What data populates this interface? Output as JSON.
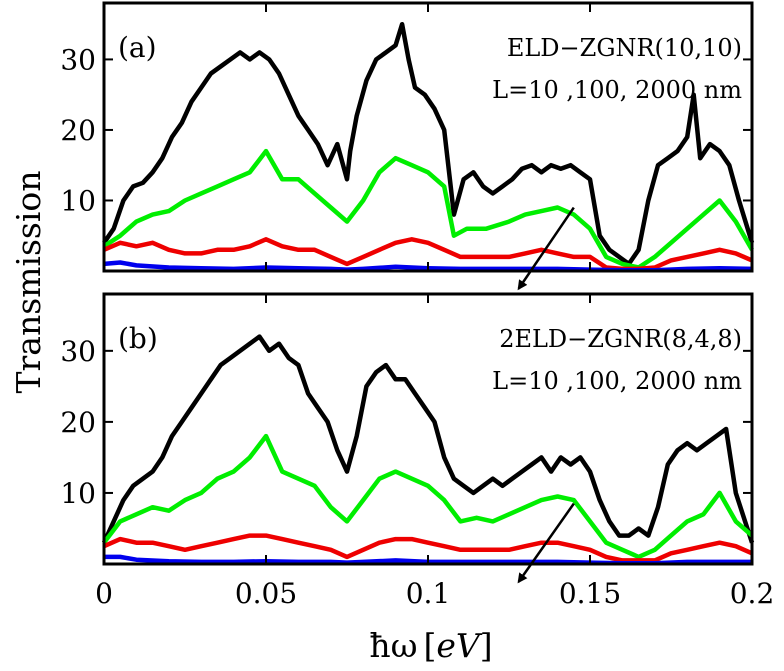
{
  "figure": {
    "ylabel": "Transmission",
    "xlabel": {
      "prefix": "ħω",
      "bracket_open": "[",
      "unit": "eV",
      "bracket_close": "]"
    },
    "xtick_labels": [
      "0",
      "0.05",
      "0.1",
      "0.15",
      "0.2"
    ]
  },
  "chart_data": [
    {
      "type": "line",
      "panel_label": "(a)",
      "annotation_line1": "ELD−ZGNR(10,10)",
      "annotation_line2": "L=10 ,100, 2000 nm",
      "xlim": [
        0,
        0.2
      ],
      "ylim": [
        0,
        38
      ],
      "ytick_labels": [
        "10",
        "20",
        "30"
      ],
      "yticks": [
        10,
        20,
        30
      ],
      "xticks": [
        0,
        0.05,
        0.1,
        0.15,
        0.2
      ],
      "arrow": {
        "from": [
          0.145,
          9
        ],
        "to": [
          0.128,
          -2.5
        ]
      },
      "series": [
        {
          "color": "#000000",
          "x": [
            0,
            0.003,
            0.006,
            0.009,
            0.012,
            0.015,
            0.018,
            0.021,
            0.024,
            0.027,
            0.03,
            0.033,
            0.036,
            0.039,
            0.042,
            0.045,
            0.048,
            0.051,
            0.054,
            0.057,
            0.06,
            0.063,
            0.066,
            0.069,
            0.072,
            0.075,
            0.076,
            0.078,
            0.081,
            0.084,
            0.087,
            0.09,
            0.092,
            0.094,
            0.096,
            0.099,
            0.102,
            0.105,
            0.107,
            0.108,
            0.111,
            0.114,
            0.117,
            0.12,
            0.123,
            0.126,
            0.129,
            0.132,
            0.135,
            0.138,
            0.141,
            0.144,
            0.147,
            0.15,
            0.153,
            0.156,
            0.159,
            0.162,
            0.165,
            0.168,
            0.171,
            0.174,
            0.177,
            0.18,
            0.182,
            0.184,
            0.187,
            0.19,
            0.193,
            0.196,
            0.2
          ],
          "y": [
            4,
            6,
            10,
            12,
            12.5,
            14,
            16,
            19,
            21,
            24,
            26,
            28,
            29,
            30,
            31,
            30,
            31,
            30,
            28,
            25,
            22,
            20,
            18,
            15,
            18,
            13,
            17,
            22,
            27,
            30,
            31,
            32,
            35,
            30,
            26,
            25,
            23,
            20,
            12,
            8,
            13,
            14,
            12,
            11,
            12,
            13,
            14.5,
            15,
            14,
            15,
            14.5,
            15,
            14,
            13,
            5,
            3,
            2,
            1,
            3,
            10,
            15,
            16,
            17,
            19,
            25,
            16,
            18,
            17,
            15,
            10,
            4
          ]
        },
        {
          "color": "#00ee00",
          "x": [
            0,
            0.005,
            0.01,
            0.015,
            0.02,
            0.025,
            0.03,
            0.035,
            0.04,
            0.045,
            0.05,
            0.055,
            0.06,
            0.065,
            0.07,
            0.075,
            0.08,
            0.085,
            0.09,
            0.095,
            0.1,
            0.105,
            0.108,
            0.112,
            0.118,
            0.125,
            0.13,
            0.135,
            0.14,
            0.145,
            0.15,
            0.155,
            0.16,
            0.165,
            0.17,
            0.175,
            0.18,
            0.185,
            0.19,
            0.195,
            0.2
          ],
          "y": [
            3.5,
            5,
            7,
            8,
            8.5,
            10,
            11,
            12,
            13,
            14,
            17,
            13,
            13,
            11,
            9,
            7,
            10,
            14,
            16,
            15,
            14,
            12,
            5,
            6,
            6,
            7,
            8,
            8.5,
            9,
            8,
            6,
            2,
            1,
            0.5,
            2,
            4,
            6,
            8,
            10,
            7,
            3
          ]
        },
        {
          "color": "#ee0000",
          "x": [
            0,
            0.005,
            0.01,
            0.015,
            0.02,
            0.025,
            0.03,
            0.035,
            0.04,
            0.045,
            0.05,
            0.055,
            0.06,
            0.065,
            0.07,
            0.075,
            0.08,
            0.085,
            0.09,
            0.095,
            0.1,
            0.105,
            0.11,
            0.115,
            0.12,
            0.125,
            0.13,
            0.135,
            0.14,
            0.145,
            0.15,
            0.155,
            0.16,
            0.165,
            0.17,
            0.175,
            0.18,
            0.185,
            0.19,
            0.195,
            0.2
          ],
          "y": [
            3,
            4,
            3.5,
            4,
            3,
            2.5,
            2.5,
            3,
            3,
            3.5,
            4.5,
            3.5,
            3,
            3,
            2,
            1,
            2,
            3,
            4,
            4.5,
            4,
            3,
            2,
            2,
            2,
            2,
            2.5,
            3,
            2.5,
            2,
            2,
            0.5,
            0.3,
            0.3,
            0.5,
            1.5,
            2,
            2.5,
            3,
            2.5,
            1.5
          ]
        },
        {
          "color": "#0000ee",
          "x": [
            0,
            0.005,
            0.01,
            0.02,
            0.03,
            0.04,
            0.05,
            0.06,
            0.07,
            0.075,
            0.08,
            0.09,
            0.1,
            0.11,
            0.12,
            0.13,
            0.14,
            0.15,
            0.16,
            0.17,
            0.18,
            0.19,
            0.2
          ],
          "y": [
            1,
            1.2,
            0.8,
            0.5,
            0.4,
            0.3,
            0.5,
            0.4,
            0.3,
            0.2,
            0.3,
            0.6,
            0.4,
            0.3,
            0.3,
            0.3,
            0.3,
            0.2,
            0.1,
            0.1,
            0.3,
            0.4,
            0.3
          ]
        }
      ]
    },
    {
      "type": "line",
      "panel_label": "(b)",
      "annotation_line1": "2ELD−ZGNR(8,4,8)",
      "annotation_line2": "L=10 ,100, 2000 nm",
      "xlim": [
        0,
        0.2
      ],
      "ylim": [
        0,
        38
      ],
      "ytick_labels": [
        "10",
        "20",
        "30"
      ],
      "yticks": [
        10,
        20,
        30
      ],
      "xticks": [
        0,
        0.05,
        0.1,
        0.15,
        0.2
      ],
      "arrow": {
        "from": [
          0.145,
          8.5
        ],
        "to": [
          0.128,
          -2.5
        ]
      },
      "series": [
        {
          "color": "#000000",
          "x": [
            0,
            0.003,
            0.006,
            0.009,
            0.012,
            0.015,
            0.018,
            0.021,
            0.024,
            0.027,
            0.03,
            0.033,
            0.036,
            0.039,
            0.042,
            0.045,
            0.048,
            0.051,
            0.054,
            0.057,
            0.06,
            0.063,
            0.066,
            0.069,
            0.072,
            0.075,
            0.078,
            0.081,
            0.084,
            0.087,
            0.09,
            0.093,
            0.096,
            0.099,
            0.102,
            0.105,
            0.108,
            0.111,
            0.114,
            0.117,
            0.12,
            0.123,
            0.126,
            0.129,
            0.132,
            0.135,
            0.138,
            0.141,
            0.144,
            0.147,
            0.15,
            0.153,
            0.156,
            0.159,
            0.162,
            0.165,
            0.168,
            0.171,
            0.174,
            0.177,
            0.18,
            0.183,
            0.186,
            0.189,
            0.192,
            0.195,
            0.2
          ],
          "y": [
            3,
            6,
            9,
            11,
            12,
            13,
            15,
            18,
            20,
            22,
            24,
            26,
            28,
            29,
            30,
            31,
            32,
            30,
            31,
            29,
            28,
            24,
            22,
            20,
            16,
            13,
            18,
            25,
            27,
            28,
            26,
            26,
            24,
            22,
            20,
            15,
            12,
            11,
            10,
            11,
            12,
            11,
            12,
            13,
            14,
            15,
            13,
            15,
            14,
            15,
            13,
            9,
            6,
            4,
            4,
            5,
            4,
            8,
            14,
            16,
            17,
            16,
            17,
            18,
            19,
            10,
            3
          ]
        },
        {
          "color": "#00ee00",
          "x": [
            0,
            0.005,
            0.01,
            0.015,
            0.02,
            0.025,
            0.03,
            0.035,
            0.04,
            0.045,
            0.05,
            0.055,
            0.06,
            0.065,
            0.07,
            0.075,
            0.08,
            0.085,
            0.09,
            0.095,
            0.1,
            0.105,
            0.11,
            0.115,
            0.12,
            0.125,
            0.13,
            0.135,
            0.14,
            0.145,
            0.15,
            0.155,
            0.16,
            0.165,
            0.17,
            0.175,
            0.18,
            0.185,
            0.19,
            0.195,
            0.2
          ],
          "y": [
            3,
            6,
            7,
            8,
            7.5,
            9,
            10,
            12,
            13,
            15,
            18,
            13,
            12,
            11,
            8,
            6,
            9,
            12,
            13,
            12,
            11,
            9,
            6,
            6.5,
            6,
            7,
            8,
            9,
            9.5,
            9,
            6,
            3,
            2,
            1,
            2,
            4,
            6,
            7,
            10,
            6,
            4
          ]
        },
        {
          "color": "#ee0000",
          "x": [
            0,
            0.005,
            0.01,
            0.015,
            0.02,
            0.025,
            0.03,
            0.035,
            0.04,
            0.045,
            0.05,
            0.055,
            0.06,
            0.065,
            0.07,
            0.075,
            0.08,
            0.085,
            0.09,
            0.095,
            0.1,
            0.105,
            0.11,
            0.115,
            0.12,
            0.125,
            0.13,
            0.135,
            0.14,
            0.145,
            0.15,
            0.155,
            0.16,
            0.165,
            0.17,
            0.175,
            0.18,
            0.185,
            0.19,
            0.195,
            0.2
          ],
          "y": [
            2.5,
            3.5,
            3,
            3,
            2.5,
            2,
            2.5,
            3,
            3.5,
            4,
            4,
            3.5,
            3,
            2.5,
            2,
            1,
            2,
            3,
            3.5,
            3.5,
            3,
            2.5,
            2,
            2,
            2,
            2,
            2.5,
            3,
            3,
            2.5,
            2,
            1,
            0.5,
            0.5,
            0.5,
            1.5,
            2,
            2.5,
            3,
            2.5,
            1.5
          ]
        },
        {
          "color": "#0000ee",
          "x": [
            0,
            0.005,
            0.01,
            0.02,
            0.03,
            0.04,
            0.05,
            0.06,
            0.07,
            0.075,
            0.08,
            0.09,
            0.1,
            0.11,
            0.12,
            0.13,
            0.14,
            0.15,
            0.16,
            0.17,
            0.18,
            0.19,
            0.2
          ],
          "y": [
            1,
            1,
            0.6,
            0.4,
            0.3,
            0.3,
            0.4,
            0.3,
            0.3,
            0.2,
            0.3,
            0.5,
            0.3,
            0.3,
            0.3,
            0.3,
            0.3,
            0.2,
            0.1,
            0.1,
            0.3,
            0.3,
            0.3
          ]
        }
      ]
    }
  ]
}
